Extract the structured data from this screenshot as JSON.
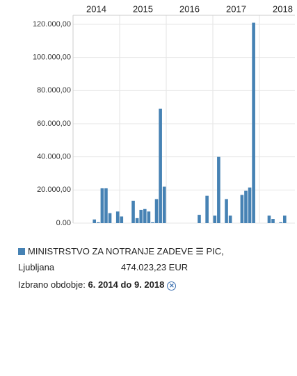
{
  "chart_data": {
    "type": "bar",
    "years": [
      "2014",
      "2015",
      "2016",
      "2017",
      "2018"
    ],
    "categories": [
      null,
      null,
      null,
      null,
      null,
      null,
      null,
      null,
      null,
      null,
      null,
      null,
      null,
      null,
      null,
      null,
      null,
      null,
      null,
      null,
      null,
      null,
      null,
      null,
      null,
      null,
      null,
      null,
      null,
      null,
      null,
      null,
      null,
      null,
      null,
      null,
      null,
      null,
      null,
      null,
      null,
      null,
      null,
      null,
      null,
      null,
      null,
      null,
      null,
      null,
      null,
      null
    ],
    "values": [
      2200,
      500,
      21000,
      21000,
      6000,
      0,
      7000,
      4000,
      0,
      0,
      13500,
      3000,
      8000,
      8500,
      7000,
      500,
      14500,
      69000,
      22000,
      0,
      0,
      0,
      0,
      0,
      0,
      0,
      0,
      5000,
      0,
      16500,
      0,
      4500,
      40000,
      0,
      14500,
      4500,
      0,
      0,
      17000,
      19500,
      21500,
      121000,
      0,
      0,
      0,
      4500,
      2500,
      0,
      500,
      4500,
      0,
      0
    ],
    "color": "#4682b4",
    "ylim": [
      0,
      120000
    ],
    "yticks": [
      {
        "value": 0,
        "label": "0.00"
      },
      {
        "value": 20000,
        "label": "20.000,00"
      },
      {
        "value": 40000,
        "label": "40.000,00"
      },
      {
        "value": 60000,
        "label": "60.000,00"
      },
      {
        "value": 80000,
        "label": "80.000,00"
      },
      {
        "value": 100000,
        "label": "100.000,00"
      },
      {
        "value": 120000,
        "label": "120.000,00"
      }
    ],
    "grid": true,
    "legend": {
      "name": "MINISTRSTVO ZA NOTRANJE ZADEVE ☰ PIC,",
      "city": "Ljubljana",
      "amount": "474.023,23 EUR"
    },
    "period_label": "Izbrano obdobje:",
    "period": "6. 2014 do 9. 2018"
  }
}
